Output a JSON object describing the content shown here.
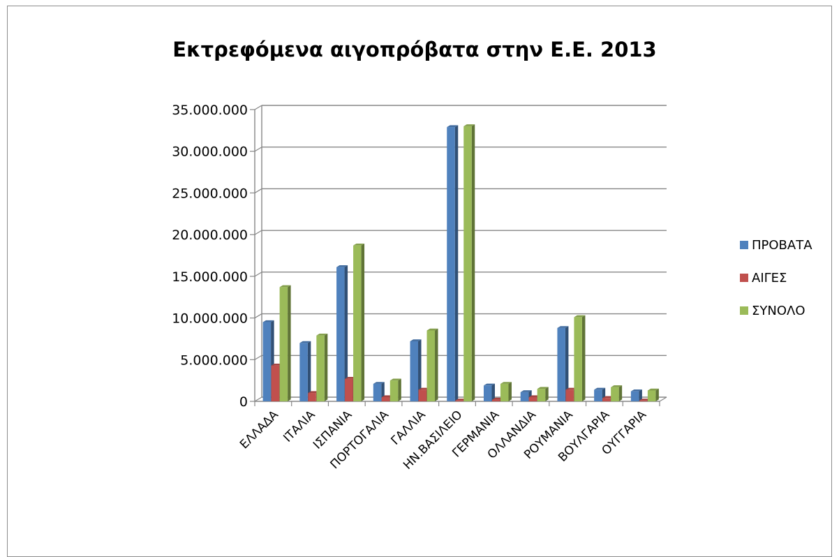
{
  "chart_data": {
    "type": "bar",
    "title": "Εκτρεφόμενα αιγοπρόβατα στην Ε.Ε. 2013",
    "xlabel": "",
    "ylabel": "",
    "ylim": [
      0,
      35000000
    ],
    "yticks": [
      "0",
      "5.000.000",
      "10.000.000",
      "15.000.000",
      "20.000.000",
      "25.000.000",
      "30.000.000",
      "35.000.000"
    ],
    "grid": true,
    "legend_position": "right",
    "categories": [
      "ΕΛΛΑΔΑ",
      "ΙΤΑΛΙΑ",
      "ΙΣΠΑΝΙΑ",
      "ΠΟΡΤΟΓΑΛΙΑ",
      "ΓΑΛΛΙΑ",
      "ΗΝ.ΒΑΣΙΛΕΙΟ",
      "ΓΕΡΜΑΝΙΑ",
      "ΟΛΛΑΝΔΙΑ",
      "ΡΟΥΜΑΝΙΑ",
      "ΒΟΥΛΓΑΡΙΑ",
      "ΟΥΓΓΑΡΙΑ"
    ],
    "series": [
      {
        "name": "ΠΡΟΒΑΤΑ",
        "color": "#4f81bd",
        "values": [
          9500000,
          7000000,
          16100000,
          2100000,
          7200000,
          32900000,
          1900000,
          1100000,
          8800000,
          1400000,
          1200000
        ]
      },
      {
        "name": "ΑΙΓΕΣ",
        "color": "#c0504d",
        "values": [
          4300000,
          1000000,
          2700000,
          500000,
          1400000,
          100000,
          200000,
          500000,
          1400000,
          400000,
          100000
        ]
      },
      {
        "name": "ΣΥΝΟΛΟ",
        "color": "#9bbb59",
        "values": [
          13700000,
          7900000,
          18700000,
          2500000,
          8500000,
          33000000,
          2100000,
          1500000,
          10100000,
          1700000,
          1300000
        ]
      }
    ]
  }
}
